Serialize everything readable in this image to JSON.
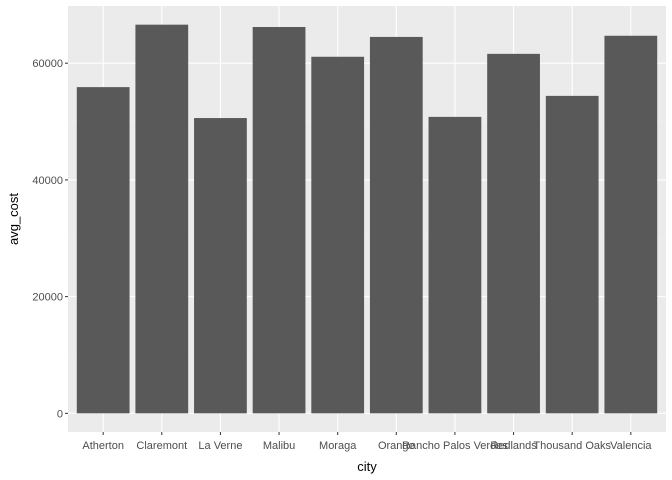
{
  "chart_data": {
    "type": "bar",
    "categories": [
      "Atherton",
      "Claremont",
      "La Verne",
      "Malibu",
      "Moraga",
      "Orange",
      "Rancho Palos Verdes",
      "Redlands",
      "Thousand Oaks",
      "Valencia"
    ],
    "values": [
      55900,
      66600,
      50600,
      66200,
      61100,
      64500,
      50800,
      61600,
      54400,
      64700
    ],
    "xlabel": "city",
    "ylabel": "avg_cost",
    "yticks": [
      0,
      20000,
      40000,
      60000
    ],
    "ytick_labels": [
      "0",
      "20000",
      "40000",
      "60000"
    ],
    "ylim": [
      -3200,
      69800
    ],
    "grid": true,
    "colors": {
      "bar": "#595959",
      "panel": "#ebebeb",
      "grid_major": "#ffffff",
      "grid_minor": "#f2f2f2"
    }
  }
}
